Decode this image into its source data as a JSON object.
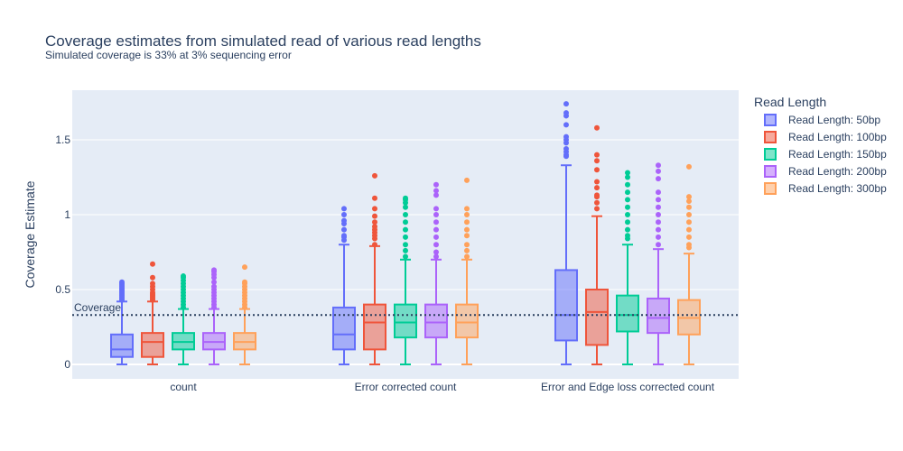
{
  "chart_data": {
    "type": "box",
    "title": "Coverage estimates from simulated read of various read lengths",
    "subtitle": "Simulated coverage is 33% at 3% sequencing error",
    "ylabel": "Coverage Estimate",
    "xlabel": "",
    "ylim": [
      -0.1,
      1.84
    ],
    "yticks": [
      0,
      0.5,
      1,
      1.5
    ],
    "ytick_labels": [
      "0",
      "0.5",
      "1",
      "1.5"
    ],
    "grid": true,
    "legend_title": "Read Length",
    "legend_position": "right",
    "categories": [
      "count",
      "Error corrected count",
      "Error and Edge loss corrected count"
    ],
    "reference_line": {
      "y": 0.33,
      "label": "Coverage",
      "style": "dotted",
      "color": "#2a3f5f"
    },
    "series": [
      {
        "name": "Read Length: 50bp",
        "color": "#636efa",
        "boxes": [
          {
            "min": 0,
            "q1": 0.05,
            "median": 0.1,
            "q3": 0.2,
            "max": 0.42,
            "outliers": [
              0.43,
              0.44,
              0.45,
              0.46,
              0.47,
              0.48,
              0.49,
              0.5,
              0.51,
              0.52,
              0.53,
              0.54,
              0.55
            ]
          },
          {
            "min": 0,
            "q1": 0.1,
            "median": 0.2,
            "q3": 0.38,
            "max": 0.8,
            "outliers": [
              0.83,
              0.85,
              0.86,
              0.9,
              0.94,
              0.96,
              1.0,
              1.04
            ]
          },
          {
            "min": 0,
            "q1": 0.16,
            "median": 0.33,
            "q3": 0.63,
            "max": 1.33,
            "outliers": [
              1.39,
              1.4,
              1.42,
              1.44,
              1.48,
              1.5,
              1.52,
              1.6,
              1.66,
              1.68,
              1.74
            ]
          }
        ]
      },
      {
        "name": "Read Length: 100bp",
        "color": "#EF553B",
        "boxes": [
          {
            "min": 0,
            "q1": 0.05,
            "median": 0.15,
            "q3": 0.21,
            "max": 0.42,
            "outliers": [
              0.43,
              0.44,
              0.45,
              0.46,
              0.47,
              0.48,
              0.5,
              0.52,
              0.54,
              0.58,
              0.67
            ]
          },
          {
            "min": 0,
            "q1": 0.1,
            "median": 0.28,
            "q3": 0.4,
            "max": 0.79,
            "outliers": [
              0.8,
              0.84,
              0.86,
              0.88,
              0.9,
              0.92,
              0.95,
              0.99,
              1.04,
              1.11,
              1.26
            ]
          },
          {
            "min": 0,
            "q1": 0.13,
            "median": 0.35,
            "q3": 0.5,
            "max": 0.99,
            "outliers": [
              1.04,
              1.08,
              1.12,
              1.13,
              1.18,
              1.22,
              1.3,
              1.36,
              1.4,
              1.58
            ]
          }
        ]
      },
      {
        "name": "Read Length: 150bp",
        "color": "#00cc96",
        "boxes": [
          {
            "min": 0,
            "q1": 0.1,
            "median": 0.15,
            "q3": 0.21,
            "max": 0.37,
            "outliers": [
              0.38,
              0.4,
              0.42,
              0.44,
              0.46,
              0.48,
              0.5,
              0.52,
              0.54,
              0.56,
              0.58,
              0.59
            ]
          },
          {
            "min": 0,
            "q1": 0.18,
            "median": 0.28,
            "q3": 0.4,
            "max": 0.7,
            "outliers": [
              0.72,
              0.76,
              0.8,
              0.85,
              0.9,
              0.95,
              1.0,
              1.05,
              1.08,
              1.1,
              1.11
            ]
          },
          {
            "min": 0,
            "q1": 0.22,
            "median": 0.33,
            "q3": 0.46,
            "max": 0.8,
            "outliers": [
              0.84,
              0.86,
              0.9,
              0.95,
              1.0,
              1.05,
              1.1,
              1.15,
              1.2,
              1.25,
              1.28
            ]
          }
        ]
      },
      {
        "name": "Read Length: 200bp",
        "color": "#ab63fa",
        "boxes": [
          {
            "min": 0,
            "q1": 0.1,
            "median": 0.15,
            "q3": 0.21,
            "max": 0.37,
            "outliers": [
              0.38,
              0.4,
              0.42,
              0.44,
              0.46,
              0.48,
              0.5,
              0.52,
              0.55,
              0.58,
              0.6,
              0.62,
              0.63
            ]
          },
          {
            "min": 0,
            "q1": 0.18,
            "median": 0.28,
            "q3": 0.4,
            "max": 0.7,
            "outliers": [
              0.72,
              0.75,
              0.8,
              0.85,
              0.9,
              0.95,
              1.0,
              1.04,
              1.13,
              1.16,
              1.2
            ]
          },
          {
            "min": 0,
            "q1": 0.21,
            "median": 0.31,
            "q3": 0.44,
            "max": 0.77,
            "outliers": [
              0.8,
              0.85,
              0.9,
              0.95,
              1.0,
              1.05,
              1.1,
              1.15,
              1.24,
              1.29,
              1.33
            ]
          }
        ]
      },
      {
        "name": "Read Length: 300bp",
        "color": "#FFA15A",
        "boxes": [
          {
            "min": 0,
            "q1": 0.1,
            "median": 0.15,
            "q3": 0.21,
            "max": 0.37,
            "outliers": [
              0.38,
              0.4,
              0.42,
              0.44,
              0.46,
              0.48,
              0.5,
              0.52,
              0.54,
              0.55,
              0.65
            ]
          },
          {
            "min": 0,
            "q1": 0.18,
            "median": 0.28,
            "q3": 0.4,
            "max": 0.7,
            "outliers": [
              0.72,
              0.76,
              0.8,
              0.86,
              0.9,
              0.95,
              1.0,
              1.04,
              1.23
            ]
          },
          {
            "min": 0,
            "q1": 0.2,
            "median": 0.31,
            "q3": 0.43,
            "max": 0.74,
            "outliers": [
              0.78,
              0.8,
              0.85,
              0.9,
              0.95,
              1.0,
              1.05,
              1.09,
              1.12,
              1.32
            ]
          }
        ]
      }
    ]
  }
}
